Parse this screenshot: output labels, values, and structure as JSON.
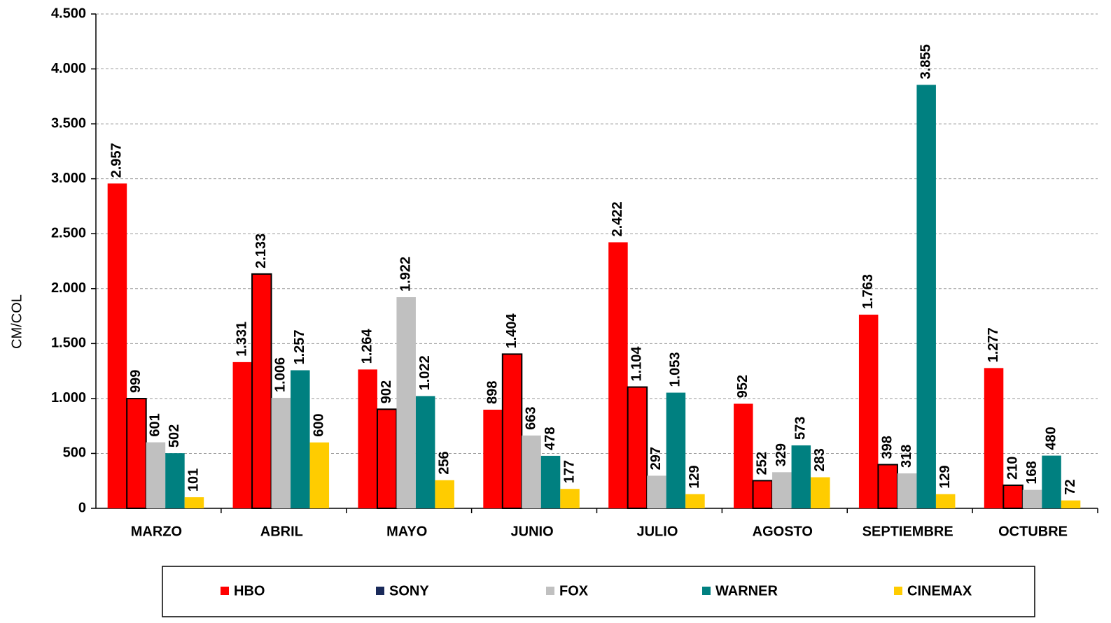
{
  "chart_data": {
    "type": "bar",
    "y_label": "CM/COL",
    "categories": [
      "MARZO",
      "ABRIL",
      "MAYO",
      "JUNIO",
      "JULIO",
      "AGOSTO",
      "SEPTIEMBRE",
      "OCTUBRE"
    ],
    "series": [
      {
        "name": "HBO",
        "color": "#ff0000",
        "values": [
          2957,
          1331,
          1264,
          898,
          2422,
          952,
          1763,
          1277
        ],
        "value_labels": [
          "2.957",
          "1.331",
          "1.264",
          "898",
          "2.422",
          "952",
          "1.763",
          "1.277"
        ]
      },
      {
        "name": "SONY",
        "color": "#ff0000",
        "legend_color": "#1a2a5a",
        "stroke": "#000000",
        "values": [
          999,
          2133,
          902,
          1404,
          1104,
          252,
          398,
          210
        ],
        "value_labels": [
          "999",
          "2.133",
          "902",
          "1.404",
          "1.104",
          "252",
          "398",
          "210"
        ]
      },
      {
        "name": "FOX",
        "color": "#c0c0c0",
        "values": [
          601,
          1006,
          1922,
          663,
          297,
          329,
          318,
          168
        ],
        "value_labels": [
          "601",
          "1.006",
          "1.922",
          "663",
          "297",
          "329",
          "318",
          "168"
        ]
      },
      {
        "name": "WARNER",
        "color": "#008080",
        "values": [
          502,
          1257,
          1022,
          478,
          1053,
          573,
          3855,
          480
        ],
        "value_labels": [
          "502",
          "1.257",
          "1.022",
          "478",
          "1.053",
          "573",
          "3.855",
          "480"
        ]
      },
      {
        "name": "CINEMAX",
        "color": "#ffcc00",
        "values": [
          101,
          600,
          256,
          177,
          129,
          283,
          129,
          72
        ],
        "value_labels": [
          "101",
          "600",
          "256",
          "177",
          "129",
          "283",
          "129",
          "72"
        ]
      }
    ],
    "ylim": [
      0,
      4500
    ],
    "yticks": [
      0,
      500,
      {
        "value": 1000,
        "label": "1.000"
      },
      {
        "value": 1500,
        "label": "1.500"
      },
      {
        "value": 2000,
        "label": "2.000"
      },
      {
        "value": 2500,
        "label": "2.500"
      },
      {
        "value": 3000,
        "label": "3.000"
      },
      {
        "value": 3500,
        "label": "3.500"
      },
      {
        "value": 4000,
        "label": "4.000"
      },
      {
        "value": 4500,
        "label": "4.500"
      }
    ],
    "grid": true,
    "legend": "bottom"
  }
}
